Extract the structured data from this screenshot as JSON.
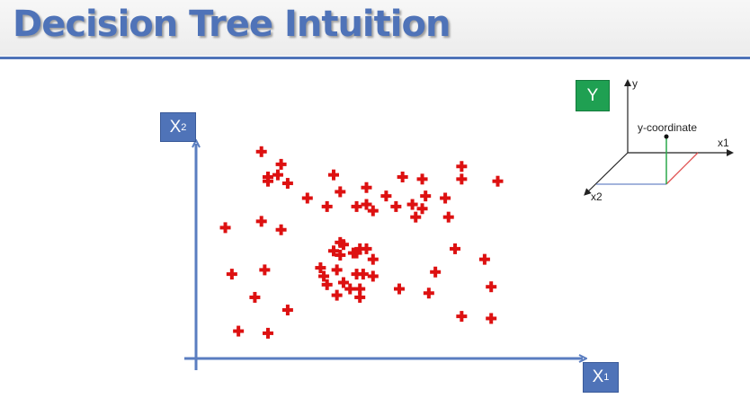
{
  "slide": {
    "title": "Decision Tree Intuition"
  },
  "axis_boxes": {
    "x2": {
      "main": "X",
      "sub": "2"
    },
    "x1": {
      "main": "X",
      "sub": "1"
    },
    "y": "Y"
  },
  "inset": {
    "y_label": "y",
    "x1_label": "x1",
    "x2_label": "x2",
    "point_label": "y-coordinate"
  },
  "colors": {
    "accent": "#4f73b8",
    "point": "#dd1111",
    "y_box": "#1fa052"
  },
  "chart_data": {
    "type": "scatter",
    "title": "",
    "xlabel": "X1",
    "ylabel": "X2",
    "xlim": [
      0,
      100
    ],
    "ylim": [
      0,
      100
    ],
    "grid": false,
    "series": [
      {
        "marker": "cross",
        "color": "#dd1111",
        "points": [
          [
            18,
            92
          ],
          [
            24,
            86
          ],
          [
            23,
            81
          ],
          [
            20,
            80
          ],
          [
            26,
            77
          ],
          [
            20,
            78
          ],
          [
            40,
            81
          ],
          [
            50,
            75
          ],
          [
            61,
            80
          ],
          [
            67,
            79
          ],
          [
            79,
            85
          ],
          [
            79,
            79
          ],
          [
            90,
            78
          ],
          [
            32,
            70
          ],
          [
            42,
            73
          ],
          [
            38,
            66
          ],
          [
            47,
            66
          ],
          [
            50,
            67
          ],
          [
            56,
            71
          ],
          [
            52,
            64
          ],
          [
            59,
            66
          ],
          [
            64,
            67
          ],
          [
            68,
            71
          ],
          [
            67,
            65
          ],
          [
            65,
            61
          ],
          [
            74,
            70
          ],
          [
            75,
            61
          ],
          [
            7,
            56
          ],
          [
            18,
            59
          ],
          [
            24,
            55
          ],
          [
            77,
            46
          ],
          [
            86,
            41
          ],
          [
            42,
            49
          ],
          [
            43,
            48
          ],
          [
            40,
            45
          ],
          [
            47,
            44
          ],
          [
            42,
            43
          ],
          [
            48,
            46
          ],
          [
            46,
            44
          ],
          [
            50,
            46
          ],
          [
            52,
            41
          ],
          [
            36,
            37
          ],
          [
            41,
            36
          ],
          [
            49,
            34
          ],
          [
            47,
            34
          ],
          [
            37,
            33
          ],
          [
            43,
            30
          ],
          [
            52,
            33
          ],
          [
            38,
            29
          ],
          [
            45,
            27
          ],
          [
            48,
            27
          ],
          [
            48,
            23
          ],
          [
            41,
            24
          ],
          [
            9,
            34
          ],
          [
            19,
            36
          ],
          [
            16,
            23
          ],
          [
            26,
            17
          ],
          [
            60,
            27
          ],
          [
            71,
            35
          ],
          [
            69,
            25
          ],
          [
            88,
            28
          ],
          [
            11,
            7
          ],
          [
            20,
            6
          ],
          [
            79,
            14
          ],
          [
            88,
            13
          ]
        ]
      }
    ]
  }
}
